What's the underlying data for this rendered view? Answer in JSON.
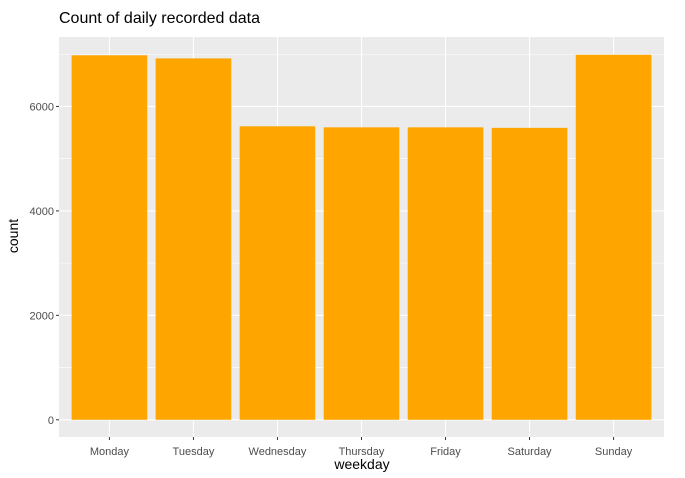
{
  "chart_data": {
    "type": "bar",
    "title": "Count of daily recorded data",
    "xlabel": "weekday",
    "ylabel": "count",
    "categories": [
      "Monday",
      "Tuesday",
      "Wednesday",
      "Thursday",
      "Friday",
      "Saturday",
      "Sunday"
    ],
    "values": [
      6980,
      6920,
      5620,
      5600,
      5600,
      5590,
      6990
    ],
    "ylim": [
      -330,
      7330
    ],
    "yticks": [
      0,
      2000,
      4000,
      6000
    ],
    "ytick_labels": [
      "0",
      "2000",
      "4000",
      "6000"
    ],
    "grid": true,
    "bar_color": "#FFA500",
    "panel_background": "#EBEBEB",
    "grid_color": "#FFFFFF"
  }
}
